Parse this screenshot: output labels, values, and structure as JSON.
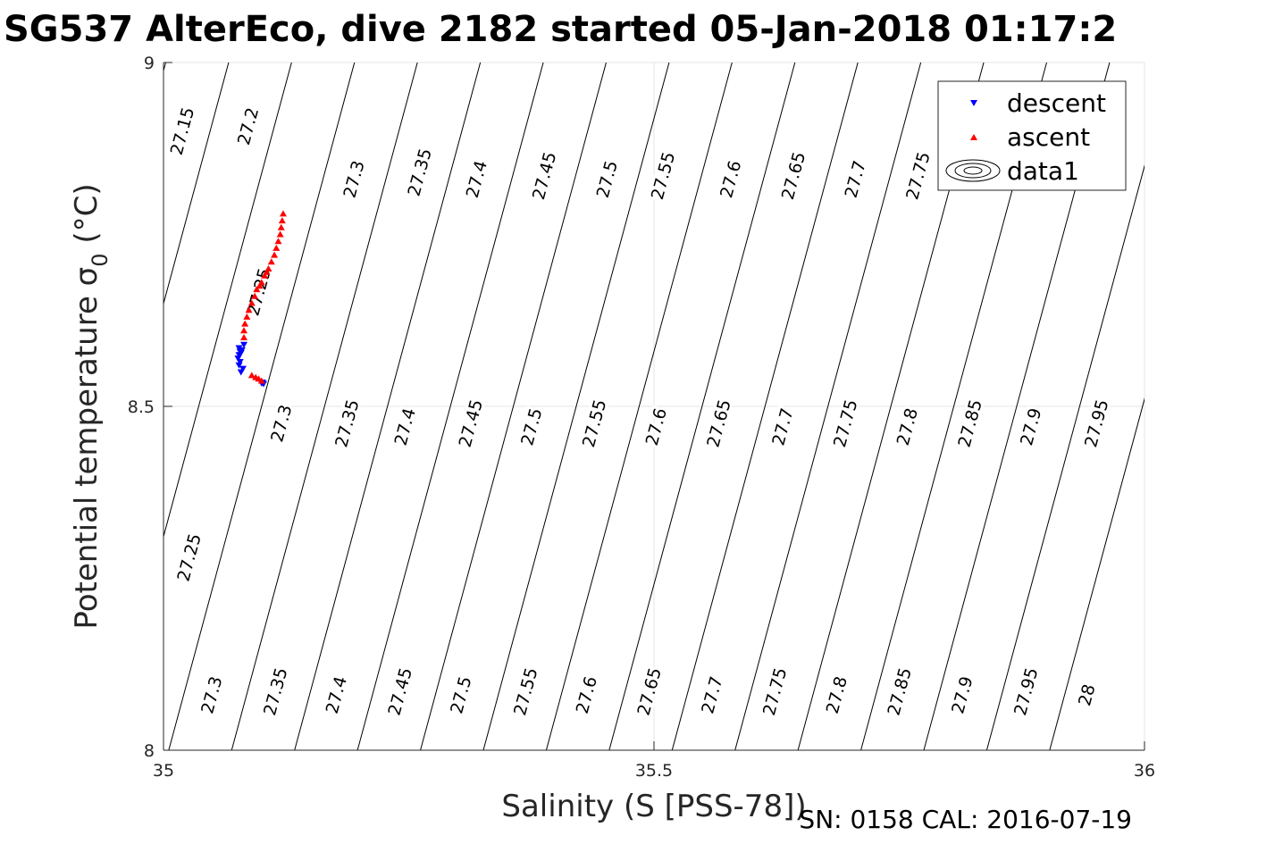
{
  "chart_data": {
    "type": "scatter",
    "title": "SG537 AlterEco, dive 2182 started 05-Jan-2018 01:17:2",
    "xlabel": "Salinity (S [PSS-78])",
    "ylabel": "Potential temperature σ",
    "ylabel_subscript": "0",
    "ylabel_suffix": " (°C)",
    "xlim": [
      35,
      36
    ],
    "ylim": [
      8,
      9
    ],
    "x_ticks": [
      35,
      35.5,
      36
    ],
    "x_tick_labels": [
      "35",
      "35.5",
      "36"
    ],
    "y_ticks": [
      8,
      8.5,
      9
    ],
    "y_tick_labels": [
      "8",
      "8.5",
      "9"
    ],
    "grid": true,
    "legend_position": "top-right",
    "legend": [
      "descent",
      "ascent",
      "data1"
    ],
    "colors": {
      "descent": "#0000ff",
      "ascent": "#ff0000",
      "contour": "#000000",
      "grid": "#e6e6e6"
    },
    "series": [
      {
        "name": "descent",
        "marker": "triangle-down",
        "x": [
          35.102,
          35.101,
          35.1,
          35.079,
          35.081,
          35.077,
          35.078,
          35.076,
          35.077,
          35.079,
          35.078,
          35.08,
          35.077,
          35.082
        ],
        "y": [
          8.533,
          8.535,
          8.534,
          8.55,
          8.555,
          8.56,
          8.565,
          8.57,
          8.575,
          8.578,
          8.58,
          8.582,
          8.585,
          8.59
        ]
      },
      {
        "name": "ascent",
        "marker": "triangle-up",
        "x": [
          35.09,
          35.094,
          35.097,
          35.1,
          35.082,
          35.082,
          35.083,
          35.085,
          35.087,
          35.09,
          35.093,
          35.095,
          35.098,
          35.1,
          35.103,
          35.105,
          35.107,
          35.11,
          35.113,
          35.115,
          35.117,
          35.119,
          35.12,
          35.121,
          35.122
        ],
        "y": [
          8.545,
          8.542,
          8.54,
          8.537,
          8.6,
          8.61,
          8.62,
          8.63,
          8.64,
          8.65,
          8.66,
          8.67,
          8.675,
          8.68,
          8.69,
          8.695,
          8.7,
          8.71,
          8.72,
          8.73,
          8.74,
          8.75,
          8.76,
          8.77,
          8.78
        ]
      }
    ],
    "contours": {
      "name": "data1",
      "levels": [
        27.15,
        27.2,
        27.25,
        27.3,
        27.35,
        27.4,
        27.45,
        27.5,
        27.55,
        27.6,
        27.65,
        27.7,
        27.75,
        27.8,
        27.85,
        27.9,
        27.95,
        28
      ],
      "labels": [
        {
          "text": "27.15",
          "s": 35.02,
          "t": 8.9
        },
        {
          "text": "27.2",
          "s": 35.087,
          "t": 8.907
        },
        {
          "text": "27.3",
          "s": 35.195,
          "t": 8.83
        },
        {
          "text": "27.35",
          "s": 35.262,
          "t": 8.84
        },
        {
          "text": "27.4",
          "s": 35.32,
          "t": 8.83
        },
        {
          "text": "27.45",
          "s": 35.389,
          "t": 8.835
        },
        {
          "text": "27.5",
          "s": 35.453,
          "t": 8.83
        },
        {
          "text": "27.55",
          "s": 35.51,
          "t": 8.835
        },
        {
          "text": "27.6",
          "s": 35.579,
          "t": 8.83
        },
        {
          "text": "27.65",
          "s": 35.643,
          "t": 8.835
        },
        {
          "text": "27.7",
          "s": 35.706,
          "t": 8.83
        },
        {
          "text": "27.75",
          "s": 35.77,
          "t": 8.835
        },
        {
          "text": "27.25",
          "s": 35.098,
          "t": 8.666
        },
        {
          "text": "27.3",
          "s": 35.121,
          "t": 8.475
        },
        {
          "text": "27.35",
          "s": 35.188,
          "t": 8.475
        },
        {
          "text": "27.4",
          "s": 35.247,
          "t": 8.47
        },
        {
          "text": "27.45",
          "s": 35.314,
          "t": 8.475
        },
        {
          "text": "27.5",
          "s": 35.376,
          "t": 8.47
        },
        {
          "text": "27.55",
          "s": 35.44,
          "t": 8.475
        },
        {
          "text": "27.6",
          "s": 35.503,
          "t": 8.47
        },
        {
          "text": "27.65",
          "s": 35.567,
          "t": 8.475
        },
        {
          "text": "27.7",
          "s": 35.632,
          "t": 8.47
        },
        {
          "text": "27.75",
          "s": 35.696,
          "t": 8.475
        },
        {
          "text": "27.8",
          "s": 35.759,
          "t": 8.47
        },
        {
          "text": "27.85",
          "s": 35.823,
          "t": 8.475
        },
        {
          "text": "27.9",
          "s": 35.885,
          "t": 8.47
        },
        {
          "text": "27.95",
          "s": 35.952,
          "t": 8.475
        },
        {
          "text": "27.25",
          "s": 35.027,
          "t": 8.28
        },
        {
          "text": "27.3",
          "s": 35.05,
          "t": 8.08
        },
        {
          "text": "27.35",
          "s": 35.115,
          "t": 8.085
        },
        {
          "text": "27.4",
          "s": 35.177,
          "t": 8.08
        },
        {
          "text": "27.45",
          "s": 35.242,
          "t": 8.085
        },
        {
          "text": "27.5",
          "s": 35.304,
          "t": 8.08
        },
        {
          "text": "27.55",
          "s": 35.37,
          "t": 8.085
        },
        {
          "text": "27.6",
          "s": 35.432,
          "t": 8.08
        },
        {
          "text": "27.65",
          "s": 35.496,
          "t": 8.085
        },
        {
          "text": "27.7",
          "s": 35.56,
          "t": 8.08
        },
        {
          "text": "27.75",
          "s": 35.624,
          "t": 8.085
        },
        {
          "text": "27.8",
          "s": 35.687,
          "t": 8.08
        },
        {
          "text": "27.85",
          "s": 35.751,
          "t": 8.085
        },
        {
          "text": "27.9",
          "s": 35.815,
          "t": 8.08
        },
        {
          "text": "27.95",
          "s": 35.88,
          "t": 8.085
        },
        {
          "text": "28",
          "s": 35.942,
          "t": 8.08
        }
      ]
    },
    "footer": "SN: 0158  CAL: 2016-07-19"
  }
}
